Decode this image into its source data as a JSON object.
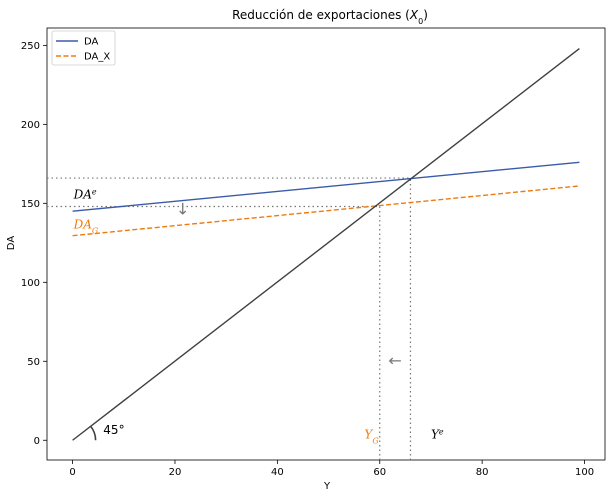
{
  "chart_data": {
    "type": "line",
    "title_main": "Reducción de exportaciones (",
    "title_var": "X",
    "title_sub": "0",
    "title_close": ")",
    "xlabel": "Y",
    "ylabel": "DA",
    "xlim": [
      -5,
      104
    ],
    "ylim": [
      -12.5,
      261
    ],
    "xticks": [
      0,
      20,
      40,
      60,
      80,
      100
    ],
    "yticks": [
      0,
      50,
      100,
      150,
      200,
      250
    ],
    "legend": {
      "placement": "top-left",
      "entries": [
        "DA",
        "DA_X"
      ]
    },
    "series": [
      {
        "name": "DA",
        "color": "#3a5ba8",
        "style": "solid",
        "x": [
          0,
          99
        ],
        "y": [
          145,
          176
        ]
      },
      {
        "name": "DA_X",
        "color": "#ef7b10",
        "style": "dashed",
        "x": [
          0,
          99
        ],
        "y": [
          129.5,
          161
        ]
      },
      {
        "color": "#404040",
        "style": "solid",
        "x": [
          0,
          99
        ],
        "y": [
          0,
          248
        ]
      }
    ],
    "ref_lines": [
      {
        "kind": "h",
        "y": 166,
        "x_to": 66
      },
      {
        "kind": "h",
        "y": 148,
        "x_to": 60
      },
      {
        "kind": "v",
        "x": 66,
        "y_to": 166
      },
      {
        "kind": "v",
        "x": 60,
        "y_to": 148
      }
    ],
    "annotations": {
      "da_e": {
        "base": "DA",
        "sup": "e",
        "x": 0.2,
        "y": 153,
        "color": "#000000"
      },
      "da_g": {
        "base": "DA",
        "sub": "G",
        "x": 0.2,
        "y": 134,
        "color": "#ef7b10"
      },
      "y_g": {
        "base": "Y",
        "sub": "G",
        "x": 57,
        "y": 1,
        "color": "#ef7b10"
      },
      "y_e": {
        "base": "Y",
        "sup": "e",
        "x": 70,
        "y": 1,
        "color": "#000000"
      },
      "angle": {
        "text": "45°",
        "x": 6,
        "y": 4
      },
      "arrow_down": {
        "glyph": "↓",
        "x": 21.5,
        "y": 143
      },
      "arrow_left": {
        "glyph": "←",
        "x": 63,
        "y": 47
      }
    }
  }
}
